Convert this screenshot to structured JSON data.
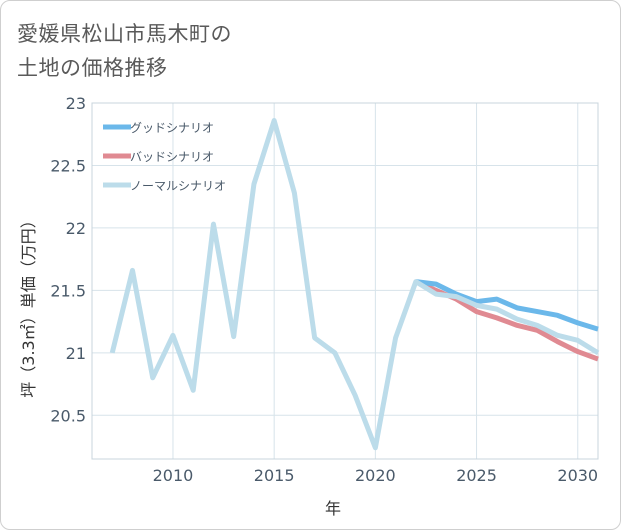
{
  "title_lines": [
    "愛媛県松山市馬木町の",
    "土地の価格推移"
  ],
  "chart_data": {
    "type": "line",
    "xlabel": "年",
    "ylabel": "坪（3.3㎡）単価（万円）",
    "xlim": [
      2006,
      2031
    ],
    "ylim": [
      20.15,
      23.0
    ],
    "xticks": [
      2010,
      2015,
      2020,
      2025,
      2030
    ],
    "yticks": [
      20.5,
      21,
      21.5,
      22,
      22.5,
      23
    ],
    "xtick_labels": [
      "2010",
      "2015",
      "2020",
      "2025",
      "2030"
    ],
    "ytick_labels": [
      "20.5",
      "21",
      "21.5",
      "22",
      "22.5",
      "23"
    ],
    "grid": true,
    "legend_position": "top-left",
    "series": [
      {
        "name": "グッドシナリオ",
        "color": "#6bb8ea",
        "x": [
          2022,
          2023,
          2024,
          2025,
          2026,
          2027,
          2028,
          2029,
          2030,
          2031
        ],
        "values": [
          21.57,
          21.55,
          21.47,
          21.41,
          21.43,
          21.36,
          21.33,
          21.3,
          21.24,
          21.19
        ]
      },
      {
        "name": "バッドシナリオ",
        "color": "#e08a92",
        "x": [
          2022,
          2023,
          2024,
          2025,
          2026,
          2027,
          2028,
          2029,
          2030,
          2031
        ],
        "values": [
          21.57,
          21.5,
          21.43,
          21.33,
          21.28,
          21.22,
          21.18,
          21.09,
          21.01,
          20.95
        ]
      },
      {
        "name": "ノーマルシナリオ",
        "color": "#bcdcea",
        "x": [
          2007,
          2008,
          2009,
          2010,
          2011,
          2012,
          2013,
          2014,
          2015,
          2016,
          2017,
          2018,
          2019,
          2020,
          2021,
          2022,
          2023,
          2024,
          2025,
          2026,
          2027,
          2028,
          2029,
          2030,
          2031
        ],
        "values": [
          21.0,
          21.66,
          20.8,
          21.14,
          20.7,
          22.03,
          21.13,
          22.35,
          22.86,
          22.28,
          21.12,
          21.0,
          20.66,
          20.24,
          21.12,
          21.57,
          21.47,
          21.45,
          21.38,
          21.35,
          21.27,
          21.22,
          21.14,
          21.1,
          21.0
        ]
      }
    ]
  }
}
